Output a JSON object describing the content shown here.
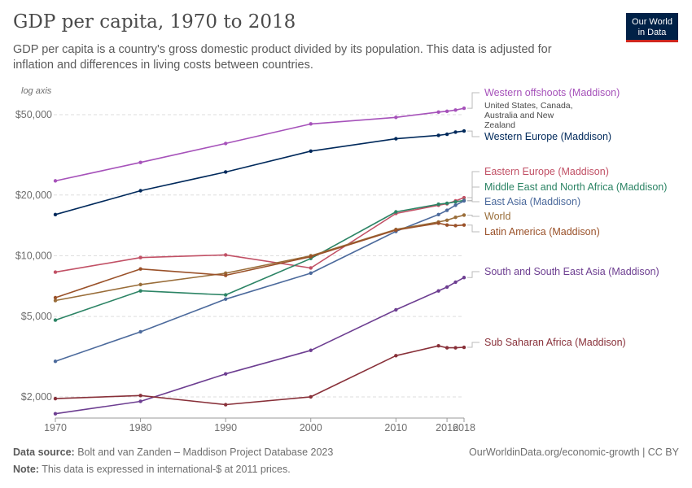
{
  "header": {
    "title": "GDP per capita, 1970 to 2018",
    "subtitle": "GDP per capita is a country's gross domestic product divided by its population. This data is adjusted for inflation and differences in living costs between countries.",
    "logo_line1": "Our World",
    "logo_line2": "in Data"
  },
  "footer": {
    "source_label": "Data source:",
    "source_text": "Bolt and van Zanden – Maddison Project Database 2023",
    "note_label": "Note:",
    "note_text": "This data is expressed in international-$ at 2011 prices.",
    "url_text": "OurWorldinData.org/economic-growth | CC BY"
  },
  "chart_data": {
    "type": "line",
    "y_scale": "log",
    "y_axis_label": "log axis",
    "ylim": [
      1600,
      58000
    ],
    "xlim": [
      1970,
      2018
    ],
    "x_ticks": [
      {
        "value": 1970,
        "label": "1970"
      },
      {
        "value": 1980,
        "label": "1980"
      },
      {
        "value": 1990,
        "label": "1990"
      },
      {
        "value": 2000,
        "label": "2000"
      },
      {
        "value": 2010,
        "label": "2010"
      },
      {
        "value": 2016,
        "label": "2016"
      },
      {
        "value": 2018,
        "label": "2018"
      }
    ],
    "y_ticks": [
      {
        "value": 2000,
        "label": "$2,000"
      },
      {
        "value": 5000,
        "label": "$5,000"
      },
      {
        "value": 10000,
        "label": "$10,000"
      },
      {
        "value": 20000,
        "label": "$20,000"
      },
      {
        "value": 50000,
        "label": "$50,000"
      }
    ],
    "grid": "horizontal dashed",
    "x": [
      1970,
      1980,
      1990,
      2000,
      2010,
      2015,
      2016,
      2017,
      2018
    ],
    "series": [
      {
        "name": "Western offshoots (Maddison)",
        "note": "United States, Canada, Australia and New Zealand",
        "color": "#a652ba",
        "values": [
          23500,
          29000,
          36000,
          45000,
          48500,
          51500,
          52000,
          52700,
          53800
        ]
      },
      {
        "name": "Western Europe (Maddison)",
        "color": "#00295b",
        "values": [
          16000,
          21000,
          26000,
          33000,
          38000,
          39500,
          40000,
          41000,
          41500
        ]
      },
      {
        "name": "Eastern Europe (Maddison)",
        "color": "#c15065",
        "values": [
          8300,
          9800,
          10100,
          8700,
          16200,
          17800,
          18100,
          18700,
          19400
        ]
      },
      {
        "name": "Middle East and North Africa (Maddison)",
        "color": "#2c8465",
        "values": [
          4800,
          6700,
          6400,
          9700,
          16500,
          18000,
          18200,
          18500,
          18800
        ]
      },
      {
        "name": "East Asia (Maddison)",
        "color": "#4c6a9c",
        "values": [
          3000,
          4200,
          6100,
          8200,
          13200,
          16000,
          16800,
          17800,
          18700
        ]
      },
      {
        "name": "World",
        "color": "#996d39",
        "values": [
          6000,
          7200,
          8200,
          10000,
          13500,
          14700,
          15000,
          15500,
          15900
        ]
      },
      {
        "name": "Latin America (Maddison)",
        "color": "#9a5129",
        "values": [
          6200,
          8600,
          8000,
          9900,
          13400,
          14500,
          14200,
          14100,
          14200
        ]
      },
      {
        "name": "South and South East Asia (Maddison)",
        "color": "#6d3e91",
        "values": [
          1650,
          1900,
          2600,
          3400,
          5400,
          6700,
          7000,
          7400,
          7800
        ]
      },
      {
        "name": "Sub Saharan Africa (Maddison)",
        "color": "#883039",
        "values": [
          1960,
          2030,
          1830,
          2000,
          3200,
          3580,
          3500,
          3500,
          3520
        ]
      }
    ]
  }
}
